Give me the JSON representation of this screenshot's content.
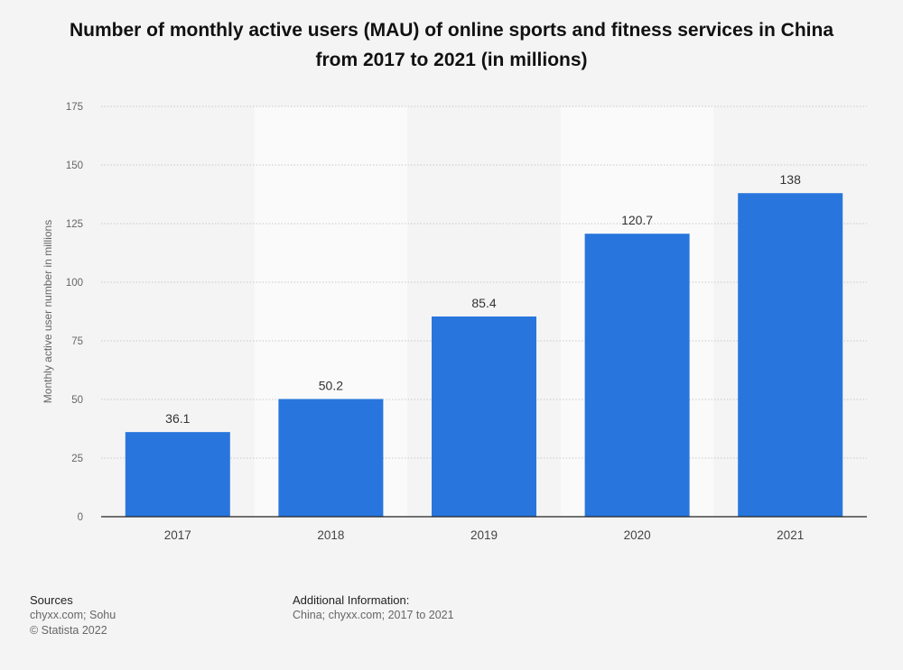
{
  "chart_data": {
    "type": "bar",
    "title_line1": "Number of monthly active users (MAU) of online sports and fitness services in China",
    "title_line2": "from 2017 to 2021 (in millions)",
    "xlabel": "",
    "ylabel": "Monthly active user number in millions",
    "categories": [
      "2017",
      "2018",
      "2019",
      "2020",
      "2021"
    ],
    "values": [
      36.1,
      50.2,
      85.4,
      120.7,
      138
    ],
    "value_labels": [
      "36.1",
      "50.2",
      "85.4",
      "120.7",
      "138"
    ],
    "ylim": [
      0,
      175
    ],
    "yticks": [
      0,
      25,
      50,
      75,
      100,
      125,
      150,
      175
    ],
    "grid": true,
    "bar_color": "#2876dd"
  },
  "footer": {
    "sources_heading": "Sources",
    "sources_line1": "chyxx.com; Sohu",
    "sources_line2": "© Statista 2022",
    "additional_heading": "Additional Information:",
    "additional_line1": "China; chyxx.com; 2017 to 2021"
  }
}
